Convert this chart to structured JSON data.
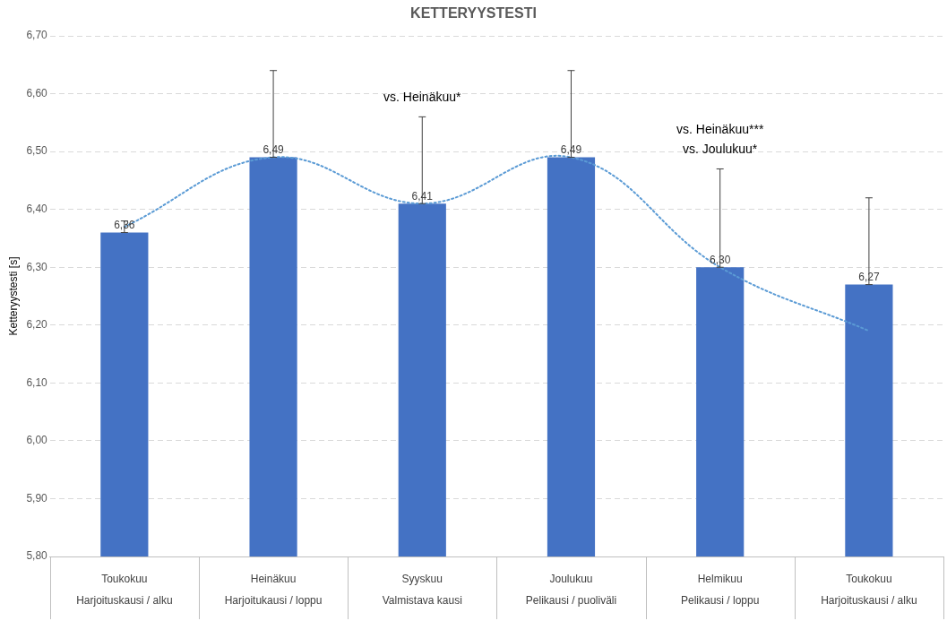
{
  "chart_data": {
    "type": "bar",
    "title": "KETTERYYSTESTI",
    "ylabel": "Ketteryystesti [s]",
    "categories": [
      "Toukokuu\nHarjoituskausi / alku",
      "Heinäkuu\nHarjoitukausi / loppu",
      "Syyskuu\nValmistava kausi",
      "Joulukuu\nPelikausi / puoliväli",
      "Helmikuu\nPelikausi / loppu",
      "Toukokuu\nHarjoituskausi / alku"
    ],
    "series": [
      {
        "color": "#4472c4",
        "values": [
          6.36,
          6.49,
          6.41,
          6.49,
          6.3,
          6.27
        ],
        "value_labels": [
          "6,36",
          "6,49",
          "6,41",
          "6,49",
          "6,30",
          "6,27"
        ],
        "errors": [
          [
            6.36,
            6.38
          ],
          [
            6.49,
            6.64
          ],
          [
            6.41,
            6.56
          ],
          [
            6.49,
            6.64
          ],
          [
            6.3,
            6.47
          ],
          [
            6.27,
            6.42
          ]
        ]
      },
      {
        "type": "line",
        "color": "#5b9bd5",
        "line_style": "dotted",
        "marker": "none",
        "values": [
          6.37,
          6.49,
          6.41,
          6.49,
          6.3,
          6.19
        ]
      }
    ],
    "ylim": [
      5.8,
      6.7
    ],
    "yticks": [
      {
        "value": 5.8,
        "label": "5,80"
      },
      {
        "value": 5.9,
        "label": "5,90"
      },
      {
        "value": 6.0,
        "label": "6,00"
      },
      {
        "value": 6.1,
        "label": "6,10"
      },
      {
        "value": 6.2,
        "label": "6,20"
      },
      {
        "value": 6.3,
        "label": "6,30"
      },
      {
        "value": 6.4,
        "label": "6,40"
      },
      {
        "value": 6.5,
        "label": "6,50"
      },
      {
        "value": 6.6,
        "label": "6,60"
      },
      {
        "value": 6.7,
        "label": "6,70"
      }
    ],
    "grid": "y",
    "legend": false,
    "annotations": [
      {
        "text": "vs. Heinäkuu*",
        "x": "Syyskuu\nValmistava kausi",
        "y": 6.56
      },
      {
        "text": "vs. Heinäkuu***\nvs. Joulukuu*",
        "x": "Helmikuu\nPelikausi / loppu",
        "y": 6.47
      }
    ]
  }
}
